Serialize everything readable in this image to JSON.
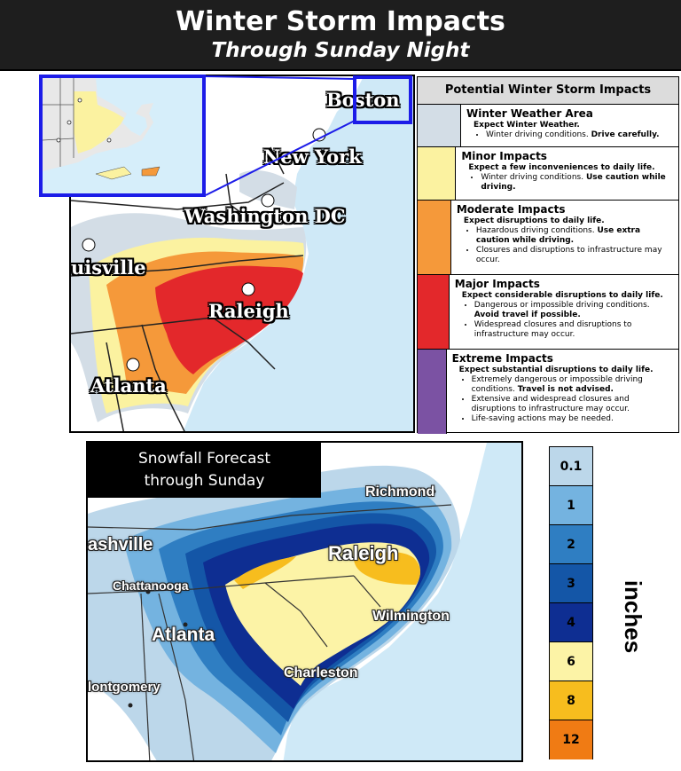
{
  "header": {
    "title": "Winter Storm Impacts",
    "subtitle": "Through Sunday Night"
  },
  "impact_map": {
    "cities": [
      "Boston",
      "New York",
      "Washington DC",
      "uisville",
      "Raleigh",
      "Atlanta"
    ]
  },
  "legend": {
    "heading": "Potential Winter Storm Impacts",
    "rows": [
      {
        "name": "Winter Weather Area",
        "color": "#d3dde6",
        "subtitle": "Expect Winter Weather.",
        "bullets": [
          {
            "text": "Winter driving conditions.",
            "bold": "Drive carefully."
          }
        ]
      },
      {
        "name": "Minor Impacts",
        "color": "#fbf2a0",
        "subtitle": "Expect a few inconveniences to daily life.",
        "bullets": [
          {
            "text": "Winter driving conditions.",
            "bold": "Use caution while driving."
          }
        ]
      },
      {
        "name": "Moderate Impacts",
        "color": "#f5993a",
        "subtitle": "Expect disruptions to daily life.",
        "bullets": [
          {
            "text": "Hazardous driving conditions.",
            "bold": "Use extra caution while driving."
          },
          {
            "text": "Closures and disruptions to infrastructure may occur.",
            "bold": ""
          }
        ]
      },
      {
        "name": "Major Impacts",
        "color": "#e3282b",
        "subtitle": "Expect considerable disruptions to daily life.",
        "bullets": [
          {
            "text": "Dangerous or impossible driving conditions.",
            "bold": "Avoid travel if possible."
          },
          {
            "text": "Widespread closures and disruptions to infrastructure may occur.",
            "bold": ""
          }
        ]
      },
      {
        "name": "Extreme Impacts",
        "color": "#7b52a3",
        "subtitle": "Expect substantial disruptions to daily life.",
        "bullets": [
          {
            "text": "Extremely dangerous or impossible driving conditions.",
            "bold": "Travel is not advised."
          },
          {
            "text": "Extensive and widespread closures and disruptions to infrastructure may occur.",
            "bold": ""
          },
          {
            "text": "Life-saving actions may be needed.",
            "bold": ""
          }
        ]
      }
    ]
  },
  "snow_map": {
    "title_line1": "Snowfall Forecast",
    "title_line2": "through Sunday",
    "cities": [
      "Richmond",
      "ashville",
      "Raleigh",
      "Chattanooga",
      "Wilmington",
      "Atlanta",
      "Charleston",
      "lontgomery"
    ]
  },
  "snow_scale": {
    "unit": "inches",
    "bins": [
      {
        "label": "0.1",
        "color": "#bcd7ea"
      },
      {
        "label": "1",
        "color": "#74b3e0"
      },
      {
        "label": "2",
        "color": "#2f7ec2"
      },
      {
        "label": "3",
        "color": "#1456a7"
      },
      {
        "label": "4",
        "color": "#0e2e92"
      },
      {
        "label": "6",
        "color": "#fcf3a6"
      },
      {
        "label": "8",
        "color": "#f7bd1e"
      },
      {
        "label": "12",
        "color": "#f07b14"
      }
    ]
  }
}
